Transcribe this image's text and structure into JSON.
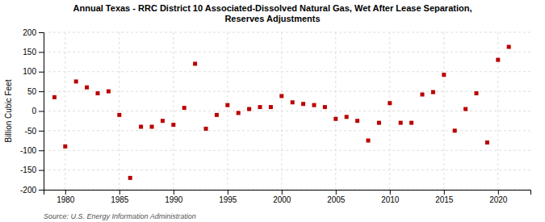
{
  "chart_data": {
    "type": "scatter",
    "title": "Annual Texas - RRC District 10 Associated-Dissolved Natural Gas, Wet After Lease Separation,\nReserves Adjustments",
    "ylabel": "Billion Cubic Feet",
    "source": "Source: U.S. Energy Information Administration",
    "x": [
      1979,
      1980,
      1981,
      1982,
      1983,
      1984,
      1985,
      1986,
      1987,
      1988,
      1989,
      1990,
      1991,
      1992,
      1993,
      1994,
      1995,
      1996,
      1997,
      1998,
      1999,
      2000,
      2001,
      2002,
      2003,
      2004,
      2005,
      2006,
      2007,
      2008,
      2009,
      2010,
      2011,
      2012,
      2013,
      2014,
      2015,
      2016,
      2017,
      2018,
      2019,
      2020,
      2021
    ],
    "values": [
      35,
      -90,
      75,
      60,
      45,
      50,
      -10,
      -170,
      -40,
      -40,
      -25,
      -35,
      8,
      120,
      -45,
      -10,
      15,
      -5,
      5,
      10,
      10,
      38,
      22,
      18,
      15,
      10,
      -20,
      -15,
      -25,
      -75,
      -30,
      20,
      -30,
      -30,
      42,
      48,
      92,
      -50,
      5,
      45,
      -80,
      130,
      163
    ],
    "color": "#bb0000",
    "marker": "square",
    "xlim": [
      1978,
      2023
    ],
    "ylim": [
      -200,
      200
    ],
    "xticks": [
      1980,
      1985,
      1990,
      1995,
      2000,
      2005,
      2010,
      2015,
      2020
    ],
    "yticks": [
      -200,
      -150,
      -100,
      -50,
      0,
      50,
      100,
      150,
      200
    ],
    "grid": true
  }
}
